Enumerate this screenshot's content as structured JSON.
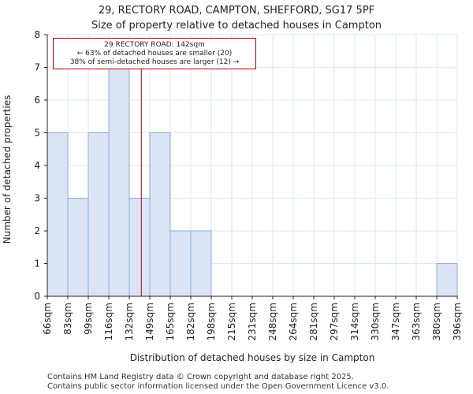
{
  "title_line1": "29, RECTORY ROAD, CAMPTON, SHEFFORD, SG17 5PF",
  "title_line2": "Size of property relative to detached houses in Campton",
  "annotation": {
    "line1": "29 RECTORY ROAD: 142sqm",
    "line2": "← 63% of detached houses are smaller (20)",
    "line3": "38% of semi-detached houses are larger (12) →"
  },
  "footer_line1": "Contains HM Land Registry data © Crown copyright and database right 2025.",
  "footer_line2": "Contains public sector information licensed under the Open Government Licence v3.0.",
  "colors": {
    "bar_fill": "#dbe4f5",
    "bar_stroke": "#8aaadb",
    "marker": "#b00000",
    "grid": "#dbe4f5"
  },
  "chart_data": {
    "type": "bar",
    "title": "Size of property relative to detached houses in Campton",
    "xlabel": "Distribution of detached houses by size in Campton",
    "ylabel": "Number of detached properties",
    "bin_edges": [
      "66sqm",
      "83sqm",
      "99sqm",
      "116sqm",
      "132sqm",
      "149sqm",
      "165sqm",
      "182sqm",
      "198sqm",
      "215sqm",
      "231sqm",
      "248sqm",
      "264sqm",
      "281sqm",
      "297sqm",
      "314sqm",
      "330sqm",
      "347sqm",
      "363sqm",
      "380sqm",
      "396sqm"
    ],
    "values": [
      5,
      3,
      5,
      7,
      3,
      5,
      2,
      2,
      0,
      0,
      0,
      0,
      0,
      0,
      0,
      0,
      0,
      0,
      0,
      1
    ],
    "ylim": [
      0,
      8
    ],
    "yticks": [
      0,
      1,
      2,
      3,
      4,
      5,
      6,
      7,
      8
    ],
    "marker_value_sqm": 142,
    "grid": true
  }
}
